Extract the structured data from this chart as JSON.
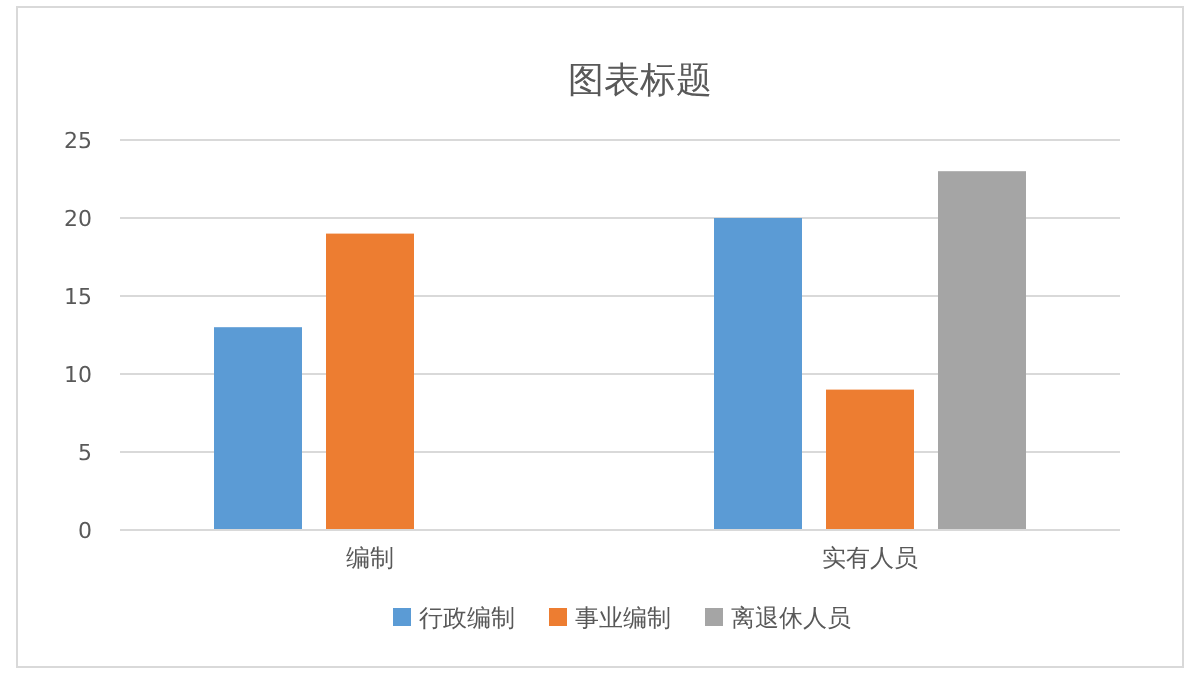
{
  "chart_data": {
    "type": "bar",
    "title": "图表标题",
    "categories": [
      "编制",
      "实有人员"
    ],
    "series": [
      {
        "name": "行政编制",
        "color": "#5b9bd5",
        "values": [
          13,
          20
        ]
      },
      {
        "name": "事业编制",
        "color": "#ed7d31",
        "values": [
          19,
          9
        ]
      },
      {
        "name": "离退休人员",
        "color": "#a5a5a5",
        "values": [
          null,
          23
        ]
      }
    ],
    "ylim": [
      0,
      25
    ],
    "yticks": [
      0,
      5,
      10,
      15,
      20,
      25
    ],
    "grid": "y",
    "legend": "bottom"
  }
}
